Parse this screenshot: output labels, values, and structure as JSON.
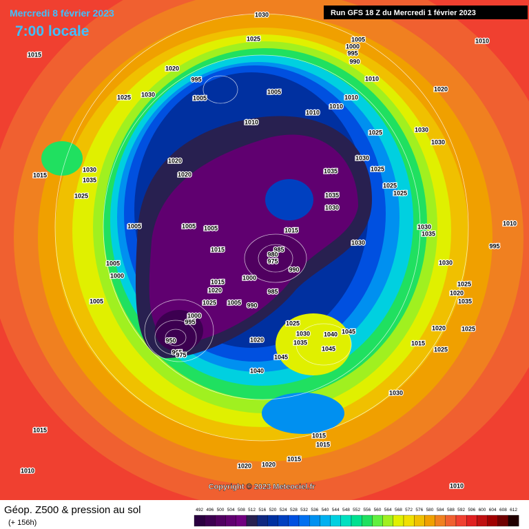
{
  "header": {
    "date": "Mercredi 8 février 2023",
    "time": "7:00 locale",
    "run": "Run GFS 18 Z du Mercredi 1 février 2023"
  },
  "copyright": "Copyright © 2023 Meteociel.fr",
  "footer": {
    "title": "Géop. Z500 & pression au sol",
    "lead": "(+ 156h)"
  },
  "legend": {
    "ticks": [
      492,
      496,
      500,
      504,
      508,
      512,
      516,
      520,
      524,
      528,
      532,
      536,
      540,
      544,
      548,
      552,
      556,
      560,
      564,
      568,
      572,
      576,
      580,
      584,
      588,
      592,
      596,
      600,
      604,
      608,
      612
    ],
    "colors": [
      "#2a0040",
      "#3c0050",
      "#500060",
      "#600070",
      "#700080",
      "#282050",
      "#102880",
      "#0030a0",
      "#0040c0",
      "#0050e0",
      "#0070f0",
      "#0090f0",
      "#00b0f0",
      "#00d0e0",
      "#00e0c0",
      "#00e090",
      "#20e060",
      "#60f040",
      "#a0f020",
      "#e0f000",
      "#f0e000",
      "#f0c000",
      "#f0a000",
      "#f08020",
      "#f06030",
      "#f04030",
      "#e02020",
      "#c01010",
      "#a00000",
      "#700000",
      "#200000"
    ]
  },
  "isobar_labels": [
    "1030",
    "1025",
    "1005",
    "1000",
    "995",
    "990",
    "1010",
    "1015",
    "1020",
    "995",
    "1005",
    "1025",
    "1030",
    "1005",
    "1010",
    "1010",
    "1010",
    "1010",
    "1020",
    "1025",
    "1030",
    "1030",
    "1010",
    "1020",
    "1020",
    "1030",
    "1035",
    "1015",
    "1025",
    "1035",
    "1030",
    "1025",
    "1025",
    "1025",
    "1035",
    "1030",
    "1005",
    "1005",
    "1005",
    "1015",
    "1030",
    "1030",
    "1035",
    "1010",
    "995",
    "1005",
    "1000",
    "1015",
    "985",
    "980",
    "975",
    "990",
    "1000",
    "1030",
    "1025",
    "1020",
    "1035",
    "1015",
    "1020",
    "985",
    "1025",
    "1005",
    "990",
    "1005",
    "1000",
    "995",
    "950",
    "965",
    "975",
    "1020",
    "1025",
    "1030",
    "1040",
    "1045",
    "1035",
    "1045",
    "1045",
    "1015",
    "1020",
    "1025",
    "1025",
    "1040",
    "1030",
    "1015",
    "1015",
    "1015",
    "1015",
    "1020",
    "1020",
    "1010",
    "1010"
  ]
}
